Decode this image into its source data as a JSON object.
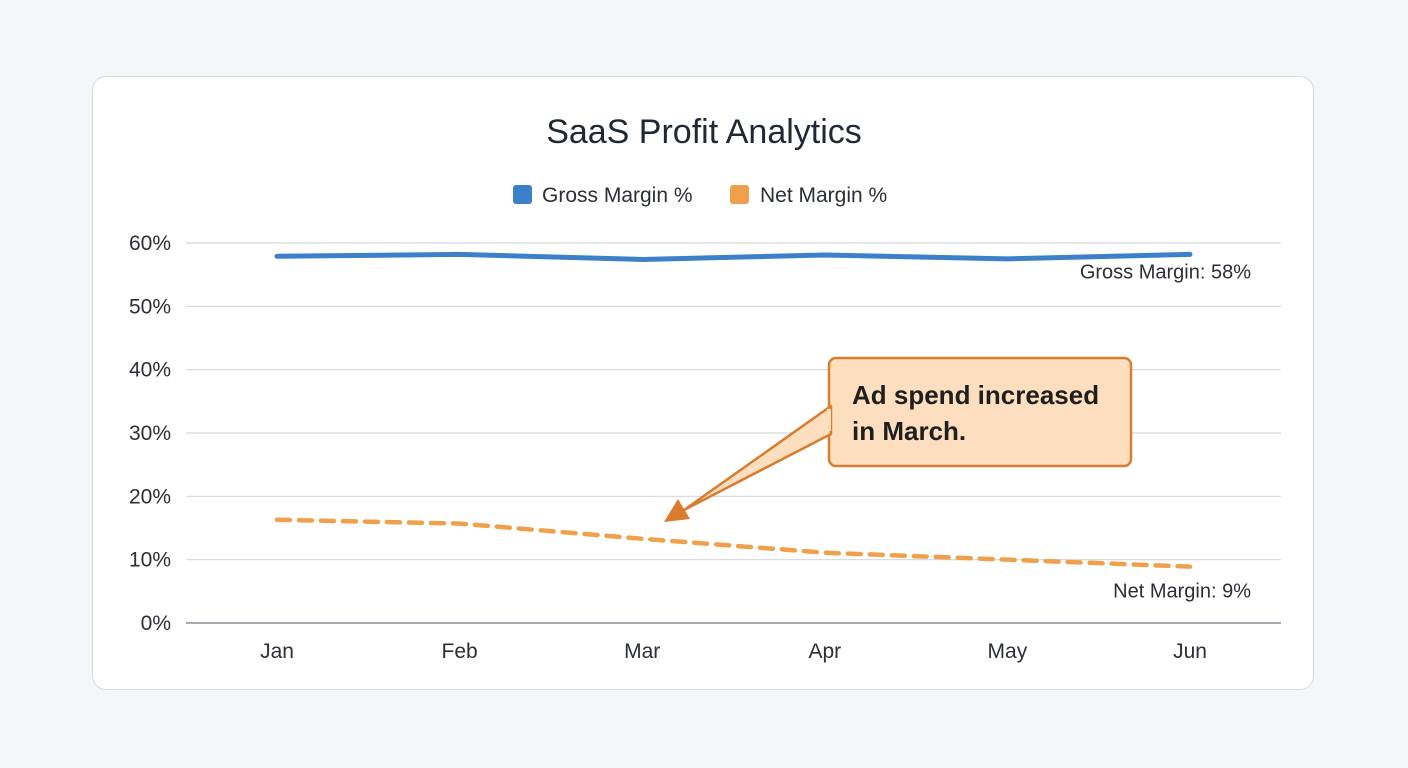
{
  "chart_data": {
    "type": "line",
    "title": "SaaS Profit Analytics",
    "categories": [
      "Jan",
      "Feb",
      "Mar",
      "Apr",
      "May",
      "Jun"
    ],
    "ylim": [
      0,
      60
    ],
    "yticks": [
      "0%",
      "10%",
      "20%",
      "30%",
      "40%",
      "50%",
      "60%"
    ],
    "grid": true,
    "legend_position": "top-center",
    "series": [
      {
        "name": "Gross Margin %",
        "values": [
          57.9,
          58.2,
          57.4,
          58.1,
          57.5,
          58.2
        ],
        "color": "#3b80c8",
        "style": "solid",
        "end_label": "Gross Margin: 58%"
      },
      {
        "name": "Net Margin %",
        "values": [
          16.3,
          15.7,
          13.3,
          11.1,
          10.0,
          8.9
        ],
        "color": "#f0a04b",
        "style": "dashed",
        "end_label": "Net Margin: 9%"
      }
    ],
    "annotation": {
      "text_lines": [
        "Ad spend increased",
        "in March."
      ],
      "target_category": "Mar",
      "target_series": "Net Margin %",
      "fill": "#fddfbf",
      "stroke": "#d97c2e"
    }
  }
}
